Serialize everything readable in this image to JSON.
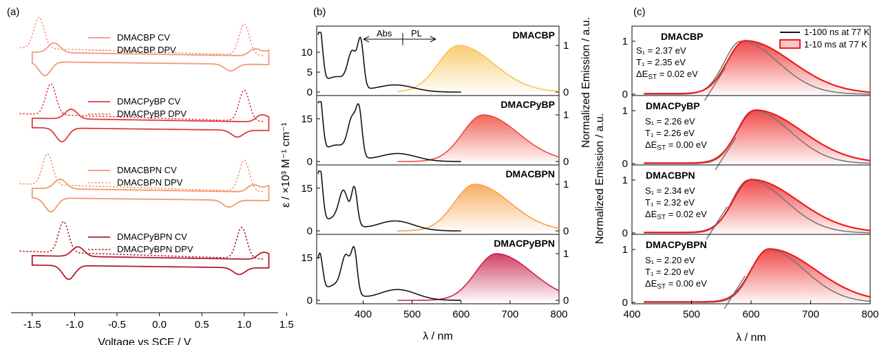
{
  "colors": {
    "DMACBP": "#f4977a",
    "DMACPyBP": "#e23a3a",
    "DMACBPN": "#f4976a",
    "DMACPyBPN": "#b41c2c",
    "abs": "#111111",
    "pl_DMACBP": "#f8c45a",
    "pl_DMACPyBP": "#ee4a3c",
    "pl_DMACBPN": "#f6a14a",
    "pl_DMACPyBPN": "#c8204a",
    "fluor": "#111111",
    "phos": "#ee1c1c"
  },
  "chart_data": [
    {
      "panel": "(a)",
      "type": "line",
      "xlabel": "Voltage vs SCE / V",
      "ylabel": "",
      "xlim": [
        -1.75,
        1.4
      ],
      "xticks": [
        "-1.5",
        "-1.0",
        "-0.5",
        "0.0",
        "0.5",
        "1.0",
        "1.5"
      ],
      "series": [
        {
          "name": "DMACBP CV",
          "compound": "DMACBP"
        },
        {
          "name": "DMACBP DPV",
          "compound": "DMACBP"
        },
        {
          "name": "DMACPyBP CV",
          "compound": "DMACPyBP"
        },
        {
          "name": "DMACPyBP DPV",
          "compound": "DMACPyBP"
        },
        {
          "name": "DMACBPN CV",
          "compound": "DMACBPN"
        },
        {
          "name": "DMACBPN DPV",
          "compound": "DMACBPN"
        },
        {
          "name": "DMACPyBPN CV",
          "compound": "DMACPyBPN"
        },
        {
          "name": "DMACPyBPN DPV",
          "compound": "DMACPyBPN"
        }
      ],
      "peaks": {
        "DMACBP": {
          "ox_dpv": 1.0,
          "red_dpv": -1.42,
          "ox_cv": 1.12,
          "red_cv": -1.3
        },
        "DMACPyBP": {
          "ox_dpv": 1.0,
          "red_dpv": -1.28,
          "ox_cv": 1.2,
          "red_cv": -1.1
        },
        "DMACBPN": {
          "ox_dpv": 1.0,
          "red_dpv": -1.32,
          "ox_cv": 1.1,
          "red_cv": -1.23
        },
        "DMACPyBPN": {
          "ox_dpv": 0.97,
          "red_dpv": -1.13,
          "ox_cv": 1.22,
          "red_cv": -1.02
        }
      }
    },
    {
      "panel": "(b)",
      "type": "line",
      "xlabel": "λ / nm",
      "ylabel_left": "ε / ×10³ M⁻¹ cm⁻¹",
      "ylabel_right": "Normalized Emission / a.u.",
      "xlim": [
        305,
        800
      ],
      "xticks": [
        "400",
        "500",
        "600",
        "700",
        "800"
      ],
      "annotation_abs": "Abs",
      "annotation_pl": "PL",
      "panels": [
        {
          "name": "DMACBP",
          "left_ticks": [
            "0",
            "5",
            "10"
          ],
          "left_max": 15,
          "right_ticks": [
            "0",
            "1"
          ],
          "abs_peaks": [
            {
              "x": 315,
              "y": 14.5
            },
            {
              "x": 378,
              "y": 11
            },
            {
              "x": 395,
              "y": 13
            }
          ],
          "abs_band": {
            "x": 465,
            "y": 1.8
          },
          "pl_peak": 595
        },
        {
          "name": "DMACPyBP",
          "left_ticks": [
            "0",
            "15"
          ],
          "left_max": 21,
          "right_ticks": [
            "0",
            "1"
          ],
          "abs_peaks": [
            {
              "x": 315,
              "y": 20.5
            },
            {
              "x": 378,
              "y": 16.5
            },
            {
              "x": 392,
              "y": 16.5
            }
          ],
          "abs_band": {
            "x": 470,
            "y": 2.8
          },
          "pl_peak": 645
        },
        {
          "name": "DMACBPN",
          "left_ticks": [
            "0",
            "15"
          ],
          "left_max": 21,
          "right_ticks": [
            "0",
            "1"
          ],
          "abs_peaks": [
            {
              "x": 315,
              "y": 20.5
            },
            {
              "x": 360,
              "y": 13.5
            },
            {
              "x": 382,
              "y": 15
            }
          ],
          "abs_band": {
            "x": 465,
            "y": 3.5
          },
          "pl_peak": 628
        },
        {
          "name": "DMACPyBPN",
          "left_ticks": [
            "0",
            "15"
          ],
          "left_max": 21,
          "right_ticks": [
            "0",
            "1"
          ],
          "abs_peaks": [
            {
              "x": 315,
              "y": 14
            },
            {
              "x": 365,
              "y": 15.5
            },
            {
              "x": 382,
              "y": 16.5
            }
          ],
          "abs_band": {
            "x": 470,
            "y": 3.8
          },
          "pl_peak": 672
        }
      ]
    },
    {
      "panel": "(c)",
      "type": "line",
      "xlabel": "λ / nm",
      "xlim": [
        400,
        800
      ],
      "xticks": [
        "400",
        "500",
        "600",
        "700",
        "800"
      ],
      "legend": [
        "1-100 ns at 77 K",
        "1-10 ms at 77 K"
      ],
      "panels": [
        {
          "name": "DMACBP",
          "y_ticks": [
            "0",
            "1"
          ],
          "fl_peak": 583,
          "ph_peak": 590,
          "onset": 527,
          "S1": "S₁ = 2.37 eV",
          "T1": "T₁ = 2.35 eV",
          "dEST": "0.02"
        },
        {
          "name": "DMACPyBP",
          "y_ticks": [
            "0",
            "1"
          ],
          "fl_peak": 604,
          "ph_peak": 607,
          "onset": 545,
          "S1": "S₁ = 2.26 eV",
          "T1": "T₁ = 2.26 eV",
          "dEST": "0.00"
        },
        {
          "name": "DMACBPN",
          "y_ticks": [
            "0",
            "1"
          ],
          "fl_peak": 596,
          "ph_peak": 600,
          "onset": 530,
          "S1": "S₁ = 2.34 eV",
          "T1": "T₁ = 2.32 eV",
          "dEST": "0.02"
        },
        {
          "name": "DMACPyBPN",
          "y_ticks": [
            "0",
            "1"
          ],
          "fl_peak": 628,
          "ph_peak": 630,
          "onset": 560,
          "S1": "S₁ = 2.20 eV",
          "T1": "T₁ = 2.20 eV",
          "dEST": "0.00"
        }
      ],
      "dest_prefix": "ΔE",
      "dest_sub": "ST",
      "dest_suffix": " eV",
      "dest_eq": " = "
    }
  ]
}
